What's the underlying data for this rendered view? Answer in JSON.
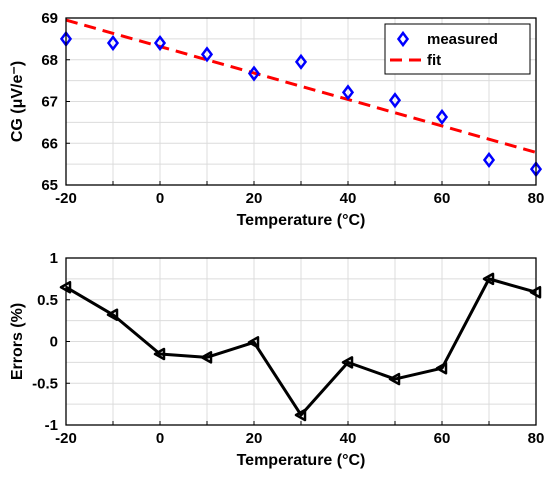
{
  "chart_data": [
    {
      "type": "scatter",
      "xlabel": "Temperature (°C)",
      "ylabel": "CG (μV/e⁻)",
      "xlim": [
        -20,
        80
      ],
      "ylim": [
        65,
        69
      ],
      "xticks": [
        "-20",
        "0",
        "20",
        "40",
        "60",
        "80"
      ],
      "yticks": [
        "65",
        "66",
        "67",
        "68",
        "69"
      ],
      "grid": true,
      "legend": "top-right",
      "series": [
        {
          "name": "measured",
          "style": "markers",
          "color": "#0000ff",
          "x": [
            -20,
            -10,
            0,
            10,
            20,
            30,
            40,
            50,
            60,
            70,
            80
          ],
          "y": [
            68.5,
            68.4,
            68.4,
            68.13,
            67.67,
            67.95,
            67.22,
            67.03,
            66.63,
            65.6,
            65.38
          ]
        },
        {
          "name": "fit",
          "style": "dashed-line",
          "color": "#ff0000",
          "x": [
            -20,
            80
          ],
          "y": [
            68.95,
            65.78
          ]
        }
      ]
    },
    {
      "type": "line",
      "xlabel": "Temperature (°C)",
      "ylabel": "Errors (%)",
      "xlim": [
        -20,
        80
      ],
      "ylim": [
        -1,
        1
      ],
      "xticks": [
        "-20",
        "0",
        "20",
        "40",
        "60",
        "80"
      ],
      "yticks": [
        "-1",
        "-0.5",
        "0",
        "0.5",
        "1"
      ],
      "grid": true,
      "series": [
        {
          "color": "#000000",
          "x": [
            -20,
            -10,
            0,
            10,
            20,
            30,
            40,
            50,
            60,
            70,
            80
          ],
          "y": [
            0.65,
            0.32,
            -0.15,
            -0.19,
            -0.01,
            -0.88,
            -0.25,
            -0.45,
            -0.32,
            0.75,
            0.59
          ]
        }
      ]
    }
  ]
}
